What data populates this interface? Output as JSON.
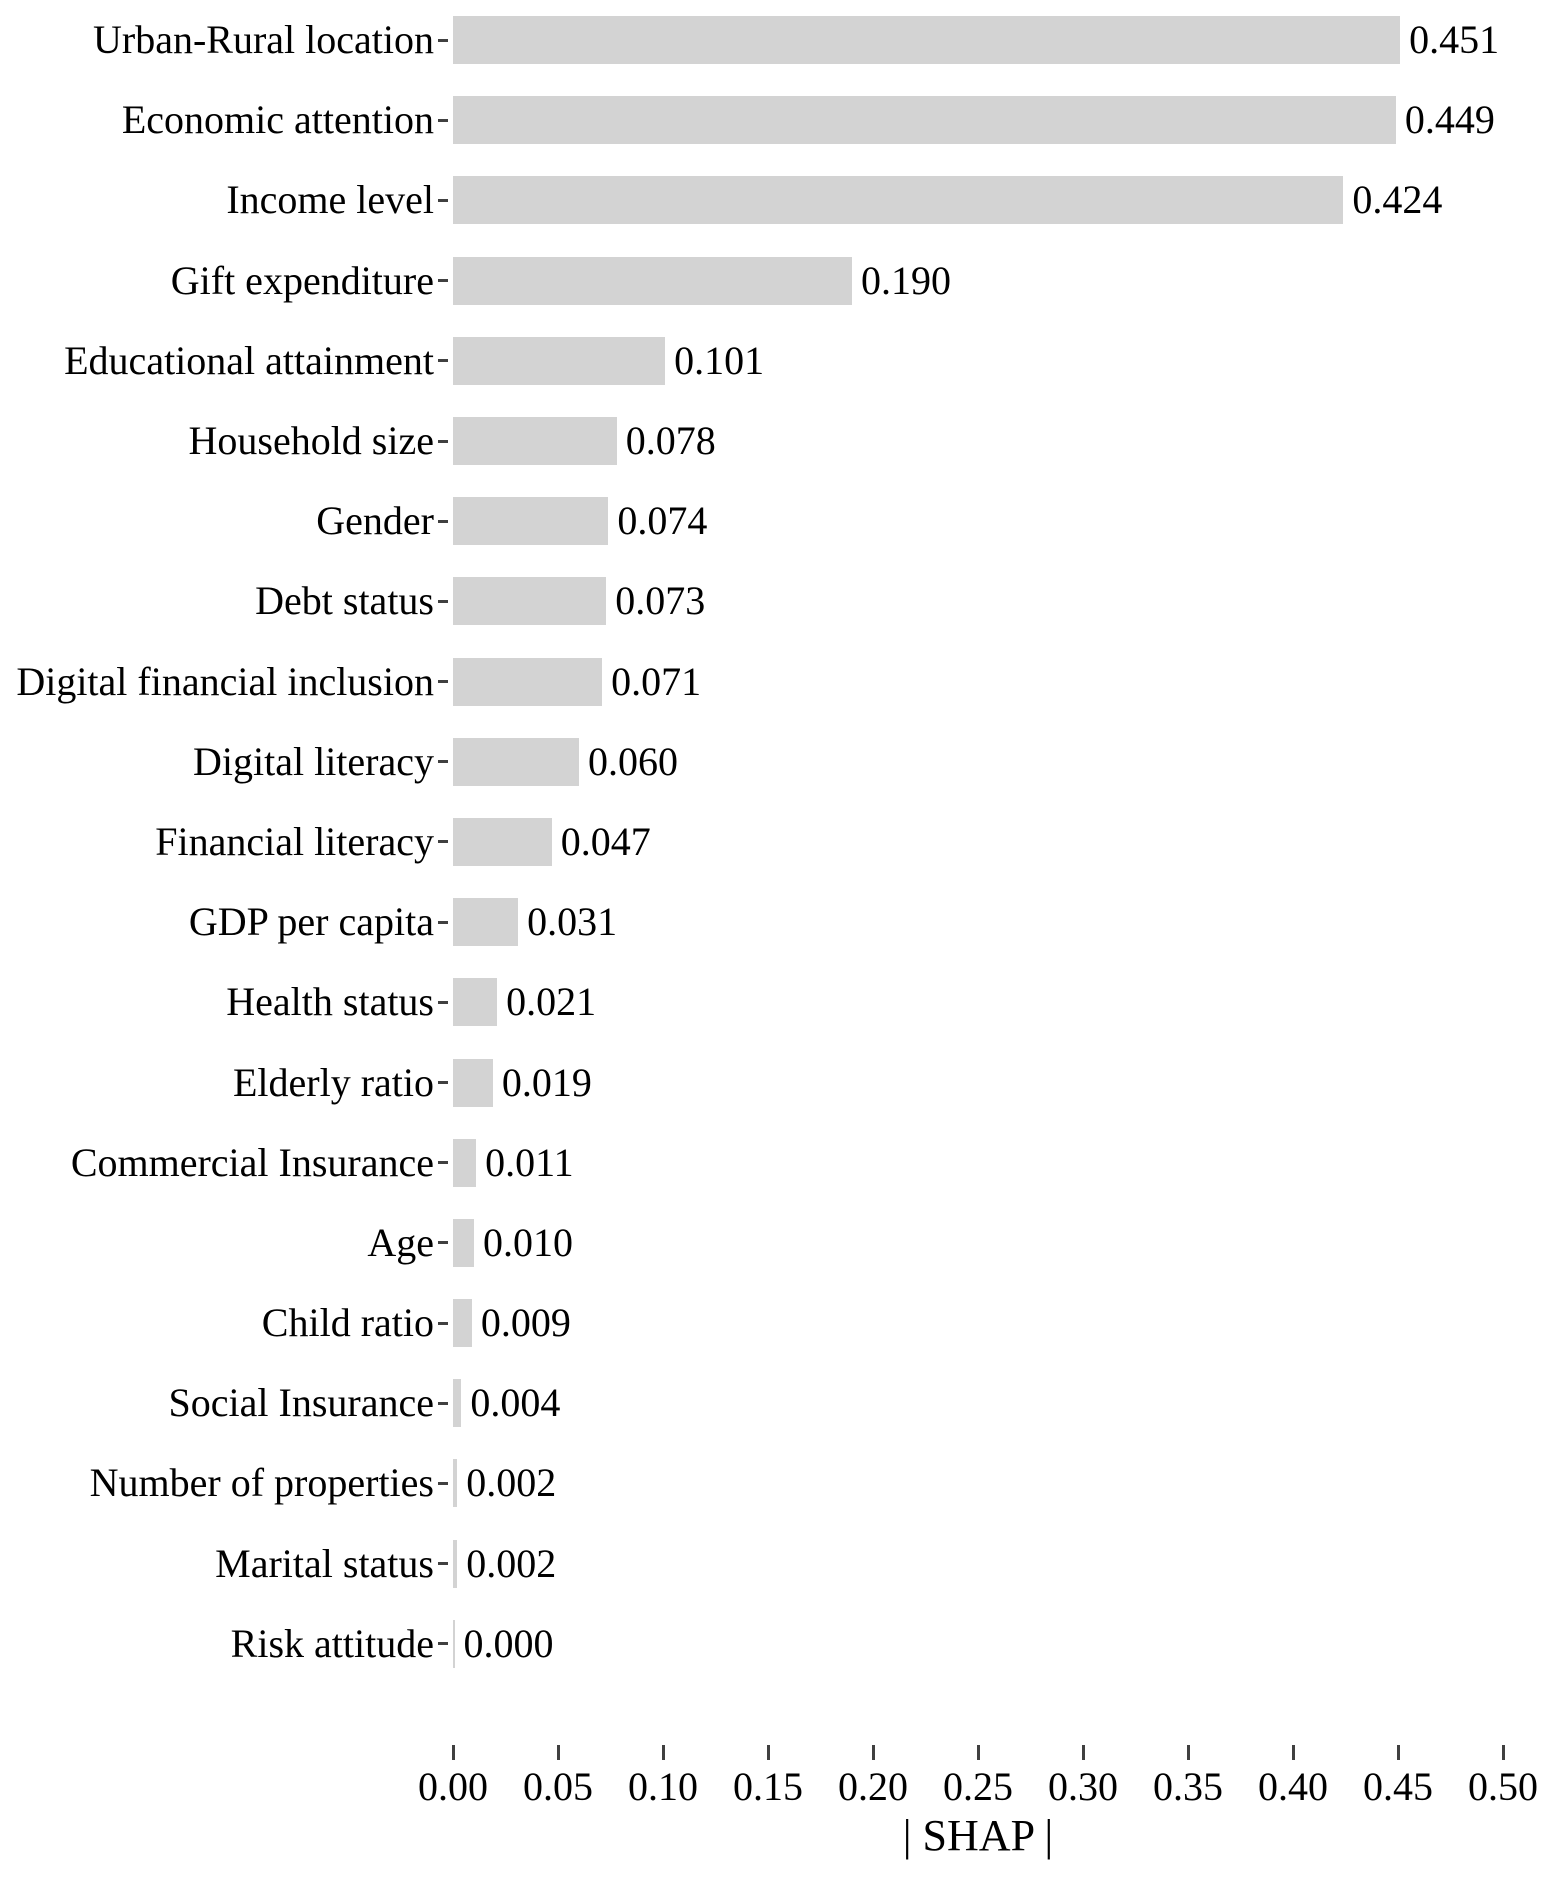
{
  "chart_data": {
    "type": "bar",
    "orientation": "horizontal",
    "title": "",
    "xlabel": "| SHAP |",
    "ylabel": "",
    "xlim": [
      0.0,
      0.5
    ],
    "grid": false,
    "legend": false,
    "bar_color": "#d3d3d3",
    "x_ticks": [
      "0.00",
      "0.05",
      "0.10",
      "0.15",
      "0.20",
      "0.25",
      "0.30",
      "0.35",
      "0.40",
      "0.45",
      "0.50"
    ],
    "x_tick_values": [
      0.0,
      0.05,
      0.1,
      0.15,
      0.2,
      0.25,
      0.3,
      0.35,
      0.4,
      0.45,
      0.5
    ],
    "categories": [
      "Urban-Rural location",
      "Economic attention",
      "Income level",
      "Gift expenditure",
      "Educational attainment",
      "Household size",
      "Gender",
      "Debt status",
      "Digital financial inclusion",
      "Digital literacy",
      "Financial literacy",
      "GDP per capita",
      "Health status",
      "Elderly ratio",
      "Commercial Insurance",
      "Age",
      "Child ratio",
      "Social Insurance",
      "Number of properties",
      "Marital status",
      "Risk attitude"
    ],
    "values": [
      0.451,
      0.449,
      0.424,
      0.19,
      0.101,
      0.078,
      0.074,
      0.073,
      0.071,
      0.06,
      0.047,
      0.031,
      0.021,
      0.019,
      0.011,
      0.01,
      0.009,
      0.004,
      0.002,
      0.002,
      0.0
    ],
    "value_labels": [
      "0.451",
      "0.449",
      "0.424",
      "0.190",
      "0.101",
      "0.078",
      "0.074",
      "0.073",
      "0.071",
      "0.060",
      "0.047",
      "0.031",
      "0.021",
      "0.019",
      "0.011",
      "0.010",
      "0.009",
      "0.004",
      "0.002",
      "0.002",
      "0.000"
    ]
  }
}
